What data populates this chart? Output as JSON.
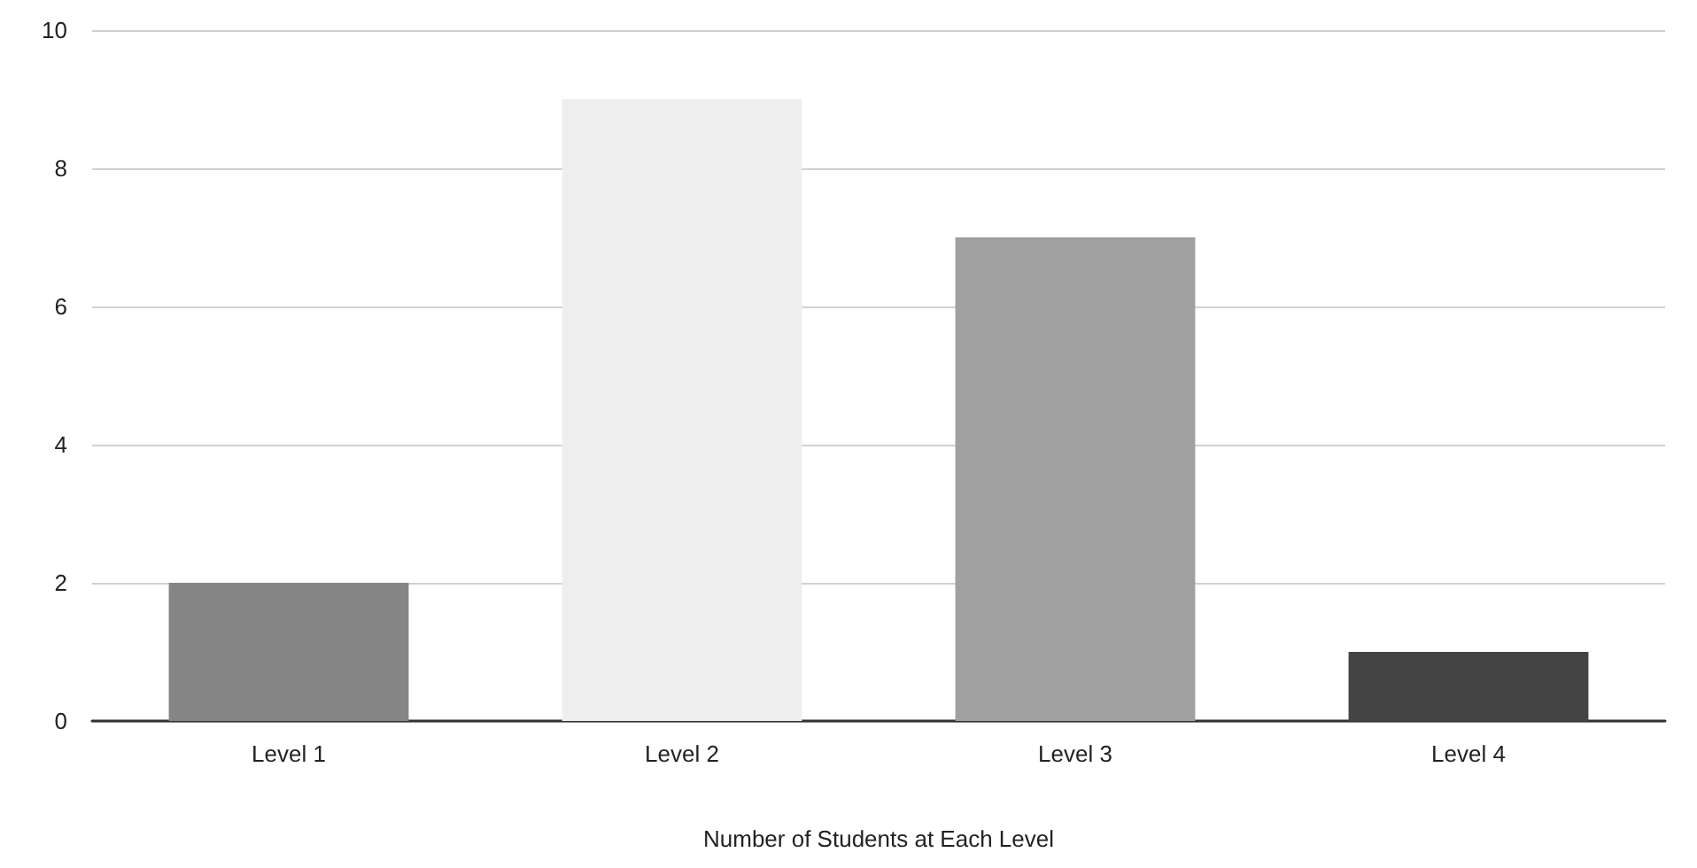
{
  "chart_data": {
    "type": "bar",
    "xlabel": "Number of Students at Each Level",
    "categories": [
      "Level 1",
      "Level 2",
      "Level 3",
      "Level 4"
    ],
    "values": [
      2,
      9,
      7,
      1
    ],
    "colors": [
      "#858585",
      "#eeeeee",
      "#a0a0a0",
      "#444444"
    ],
    "ylim": [
      0,
      10
    ],
    "yticks": [
      0,
      2,
      4,
      6,
      8,
      10
    ],
    "grid": "y"
  }
}
